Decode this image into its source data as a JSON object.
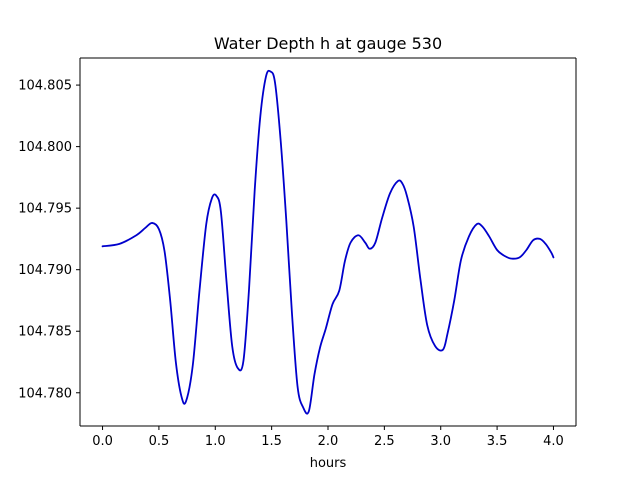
{
  "chart_data": {
    "type": "line",
    "title": "Water Depth h at gauge 530",
    "xlabel": "hours",
    "ylabel": "",
    "xlim": [
      -0.2,
      4.2
    ],
    "ylim": [
      104.7773,
      104.8072
    ],
    "xticks": [
      0.0,
      0.5,
      1.0,
      1.5,
      2.0,
      2.5,
      3.0,
      3.5,
      4.0
    ],
    "xtick_labels": [
      "0.0",
      "0.5",
      "1.0",
      "1.5",
      "2.0",
      "2.5",
      "3.0",
      "3.5",
      "4.0"
    ],
    "yticks": [
      104.78,
      104.785,
      104.79,
      104.795,
      104.8,
      104.805
    ],
    "ytick_labels": [
      "104.780",
      "104.785",
      "104.790",
      "104.795",
      "104.800",
      "104.805"
    ],
    "grid": false,
    "series": [
      {
        "color": "#0000cc",
        "x": [
          0.0,
          0.15,
          0.3,
          0.38,
          0.44,
          0.5,
          0.55,
          0.6,
          0.65,
          0.7,
          0.74,
          0.8,
          0.86,
          0.92,
          0.97,
          1.01,
          1.05,
          1.1,
          1.15,
          1.2,
          1.25,
          1.3,
          1.35,
          1.4,
          1.45,
          1.49,
          1.53,
          1.58,
          1.63,
          1.68,
          1.73,
          1.78,
          1.83,
          1.88,
          1.93,
          1.98,
          2.04,
          2.1,
          2.15,
          2.2,
          2.27,
          2.33,
          2.37,
          2.42,
          2.48,
          2.55,
          2.62,
          2.66,
          2.7,
          2.76,
          2.82,
          2.88,
          2.95,
          3.02,
          3.06,
          3.12,
          3.18,
          3.25,
          3.32,
          3.37,
          3.43,
          3.5,
          3.57,
          3.63,
          3.7,
          3.76,
          3.82,
          3.88,
          3.93,
          3.98,
          4.0
        ],
        "y": [
          104.7919,
          104.7921,
          104.7928,
          104.7934,
          104.7938,
          104.7933,
          104.7915,
          104.7875,
          104.7825,
          104.7797,
          104.7793,
          104.7822,
          104.7883,
          104.7937,
          104.7958,
          104.796,
          104.7947,
          104.789,
          104.7838,
          104.782,
          104.7826,
          104.7885,
          104.7965,
          104.8025,
          104.8057,
          104.8061,
          104.8052,
          104.8005,
          104.794,
          104.7865,
          104.7805,
          104.7788,
          104.7785,
          104.7815,
          104.7837,
          104.7852,
          104.7872,
          104.7883,
          104.7907,
          104.7922,
          104.7928,
          104.7922,
          104.7917,
          104.7922,
          104.7942,
          104.7962,
          104.7972,
          104.797,
          104.796,
          104.7935,
          104.7892,
          104.7855,
          104.7838,
          104.7835,
          104.7848,
          104.7875,
          104.7908,
          104.7927,
          104.7937,
          104.7935,
          104.7927,
          104.7916,
          104.7911,
          104.7909,
          104.791,
          104.7916,
          104.7924,
          104.7925,
          104.7921,
          104.7914,
          104.791
        ]
      }
    ]
  }
}
